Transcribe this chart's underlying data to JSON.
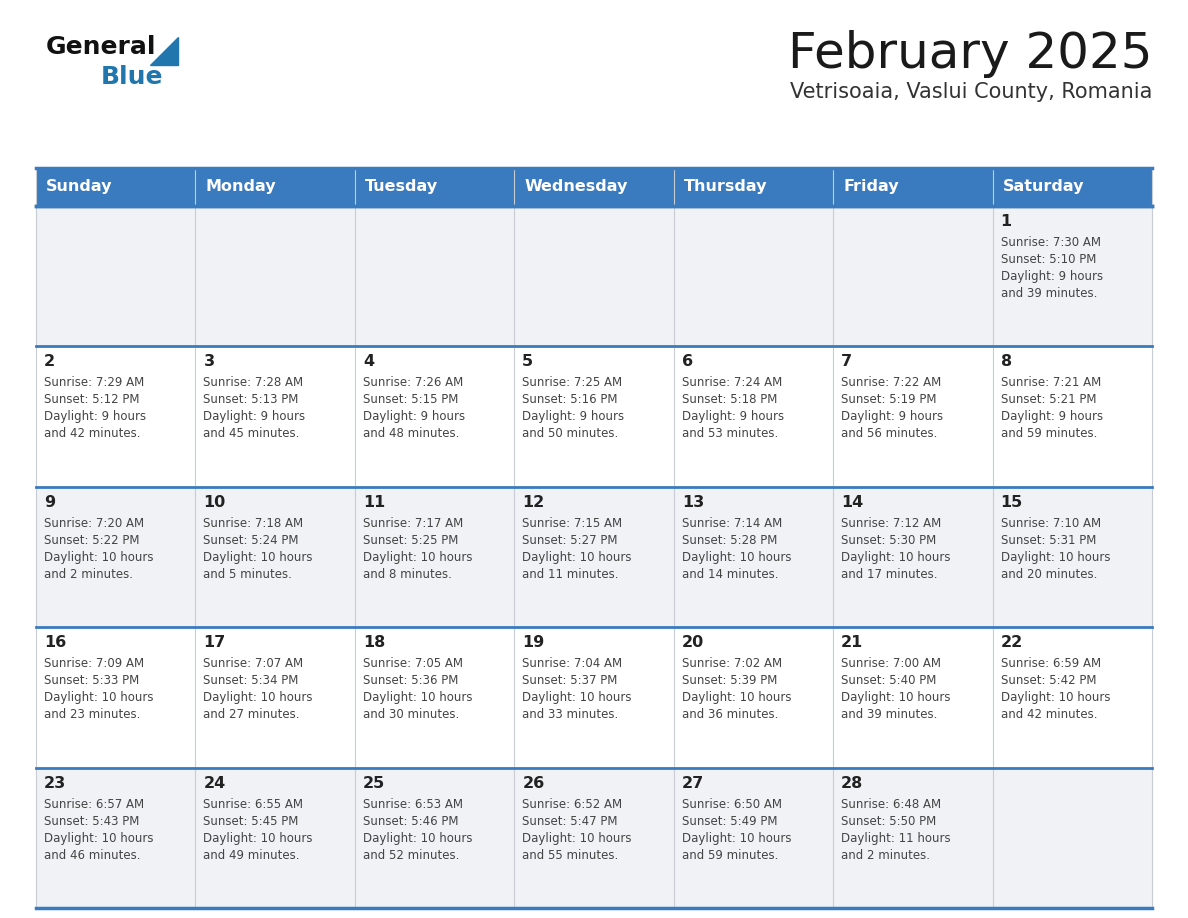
{
  "title": "February 2025",
  "subtitle": "Vetrisoaia, Vaslui County, Romania",
  "header_color": "#3a7abf",
  "header_text_color": "#ffffff",
  "day_names": [
    "Sunday",
    "Monday",
    "Tuesday",
    "Wednesday",
    "Thursday",
    "Friday",
    "Saturday"
  ],
  "background_color": "#ffffff",
  "cell_bg_white": "#ffffff",
  "cell_bg_gray": "#f0f2f5",
  "border_color": "#3a7abf",
  "border_color_light": "#c8cdd4",
  "day_num_color": "#222222",
  "info_color": "#444444",
  "days": [
    {
      "day": 1,
      "col": 6,
      "row": 0,
      "sunrise": "7:30 AM",
      "sunset": "5:10 PM",
      "daylight": "9 hours and 39 minutes."
    },
    {
      "day": 2,
      "col": 0,
      "row": 1,
      "sunrise": "7:29 AM",
      "sunset": "5:12 PM",
      "daylight": "9 hours and 42 minutes."
    },
    {
      "day": 3,
      "col": 1,
      "row": 1,
      "sunrise": "7:28 AM",
      "sunset": "5:13 PM",
      "daylight": "9 hours and 45 minutes."
    },
    {
      "day": 4,
      "col": 2,
      "row": 1,
      "sunrise": "7:26 AM",
      "sunset": "5:15 PM",
      "daylight": "9 hours and 48 minutes."
    },
    {
      "day": 5,
      "col": 3,
      "row": 1,
      "sunrise": "7:25 AM",
      "sunset": "5:16 PM",
      "daylight": "9 hours and 50 minutes."
    },
    {
      "day": 6,
      "col": 4,
      "row": 1,
      "sunrise": "7:24 AM",
      "sunset": "5:18 PM",
      "daylight": "9 hours and 53 minutes."
    },
    {
      "day": 7,
      "col": 5,
      "row": 1,
      "sunrise": "7:22 AM",
      "sunset": "5:19 PM",
      "daylight": "9 hours and 56 minutes."
    },
    {
      "day": 8,
      "col": 6,
      "row": 1,
      "sunrise": "7:21 AM",
      "sunset": "5:21 PM",
      "daylight": "9 hours and 59 minutes."
    },
    {
      "day": 9,
      "col": 0,
      "row": 2,
      "sunrise": "7:20 AM",
      "sunset": "5:22 PM",
      "daylight": "10 hours and 2 minutes."
    },
    {
      "day": 10,
      "col": 1,
      "row": 2,
      "sunrise": "7:18 AM",
      "sunset": "5:24 PM",
      "daylight": "10 hours and 5 minutes."
    },
    {
      "day": 11,
      "col": 2,
      "row": 2,
      "sunrise": "7:17 AM",
      "sunset": "5:25 PM",
      "daylight": "10 hours and 8 minutes."
    },
    {
      "day": 12,
      "col": 3,
      "row": 2,
      "sunrise": "7:15 AM",
      "sunset": "5:27 PM",
      "daylight": "10 hours and 11 minutes."
    },
    {
      "day": 13,
      "col": 4,
      "row": 2,
      "sunrise": "7:14 AM",
      "sunset": "5:28 PM",
      "daylight": "10 hours and 14 minutes."
    },
    {
      "day": 14,
      "col": 5,
      "row": 2,
      "sunrise": "7:12 AM",
      "sunset": "5:30 PM",
      "daylight": "10 hours and 17 minutes."
    },
    {
      "day": 15,
      "col": 6,
      "row": 2,
      "sunrise": "7:10 AM",
      "sunset": "5:31 PM",
      "daylight": "10 hours and 20 minutes."
    },
    {
      "day": 16,
      "col": 0,
      "row": 3,
      "sunrise": "7:09 AM",
      "sunset": "5:33 PM",
      "daylight": "10 hours and 23 minutes."
    },
    {
      "day": 17,
      "col": 1,
      "row": 3,
      "sunrise": "7:07 AM",
      "sunset": "5:34 PM",
      "daylight": "10 hours and 27 minutes."
    },
    {
      "day": 18,
      "col": 2,
      "row": 3,
      "sunrise": "7:05 AM",
      "sunset": "5:36 PM",
      "daylight": "10 hours and 30 minutes."
    },
    {
      "day": 19,
      "col": 3,
      "row": 3,
      "sunrise": "7:04 AM",
      "sunset": "5:37 PM",
      "daylight": "10 hours and 33 minutes."
    },
    {
      "day": 20,
      "col": 4,
      "row": 3,
      "sunrise": "7:02 AM",
      "sunset": "5:39 PM",
      "daylight": "10 hours and 36 minutes."
    },
    {
      "day": 21,
      "col": 5,
      "row": 3,
      "sunrise": "7:00 AM",
      "sunset": "5:40 PM",
      "daylight": "10 hours and 39 minutes."
    },
    {
      "day": 22,
      "col": 6,
      "row": 3,
      "sunrise": "6:59 AM",
      "sunset": "5:42 PM",
      "daylight": "10 hours and 42 minutes."
    },
    {
      "day": 23,
      "col": 0,
      "row": 4,
      "sunrise": "6:57 AM",
      "sunset": "5:43 PM",
      "daylight": "10 hours and 46 minutes."
    },
    {
      "day": 24,
      "col": 1,
      "row": 4,
      "sunrise": "6:55 AM",
      "sunset": "5:45 PM",
      "daylight": "10 hours and 49 minutes."
    },
    {
      "day": 25,
      "col": 2,
      "row": 4,
      "sunrise": "6:53 AM",
      "sunset": "5:46 PM",
      "daylight": "10 hours and 52 minutes."
    },
    {
      "day": 26,
      "col": 3,
      "row": 4,
      "sunrise": "6:52 AM",
      "sunset": "5:47 PM",
      "daylight": "10 hours and 55 minutes."
    },
    {
      "day": 27,
      "col": 4,
      "row": 4,
      "sunrise": "6:50 AM",
      "sunset": "5:49 PM",
      "daylight": "10 hours and 59 minutes."
    },
    {
      "day": 28,
      "col": 5,
      "row": 4,
      "sunrise": "6:48 AM",
      "sunset": "5:50 PM",
      "daylight": "11 hours and 2 minutes."
    }
  ],
  "logo_general_color": "#111111",
  "logo_blue_color": "#2176ae",
  "logo_triangle_color": "#2176ae",
  "figwidth": 11.88,
  "figheight": 9.18,
  "dpi": 100
}
